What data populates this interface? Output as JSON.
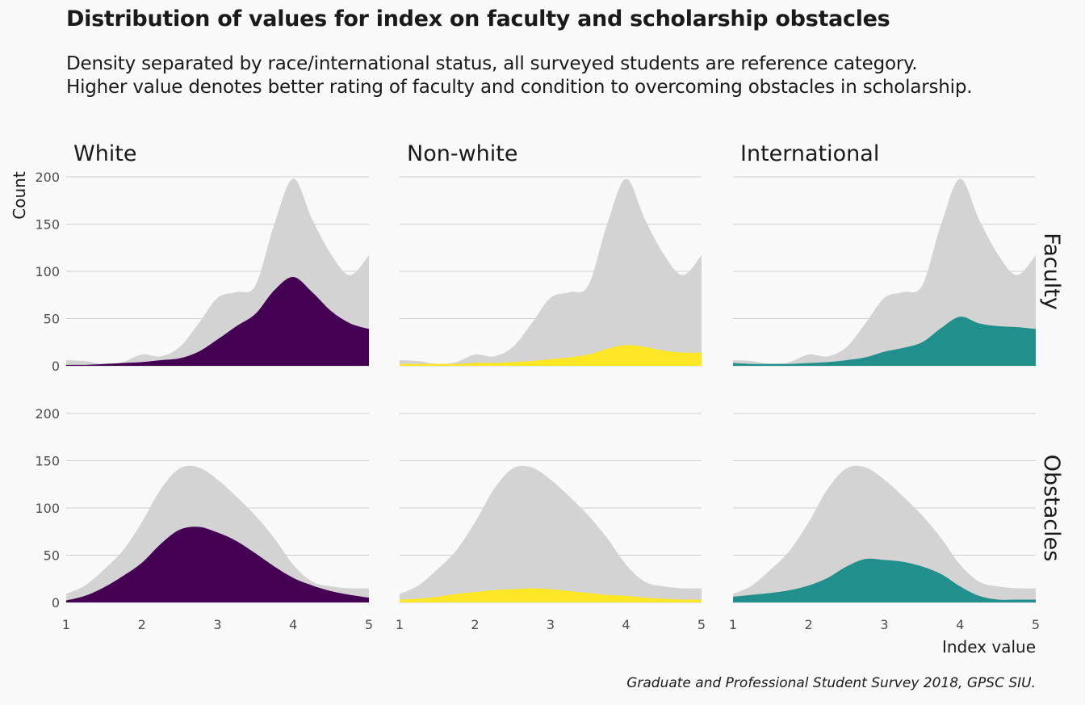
{
  "title": "Distribution of values for index on faculty and scholarship obstacles",
  "subtitle": [
    "Density separated by race/international status, all surveyed students are reference category.",
    "Higher value denotes better rating of faculty and condition to overcoming obstacles in scholarship."
  ],
  "caption": "Graduate and Professional Student Survey 2018, GPSC SIU.",
  "chart_data": {
    "type": "area",
    "columns": [
      "White",
      "Non-white",
      "International"
    ],
    "rows": [
      "Faculty",
      "Obstacles"
    ],
    "xlabel": "Index value",
    "ylabel": "Count",
    "xlim": [
      1,
      5
    ],
    "ylim": [
      0,
      200
    ],
    "xticks": [
      1,
      2,
      3,
      4,
      5
    ],
    "yticks": [
      0,
      50,
      100,
      150,
      200
    ],
    "grid": true,
    "colors": {
      "reference": "#d3d3d3",
      "White": "#440154",
      "Non-white": "#fde725",
      "International": "#21908c"
    },
    "x": [
      1.0,
      1.25,
      1.5,
      1.75,
      2.0,
      2.25,
      2.5,
      2.75,
      3.0,
      3.25,
      3.5,
      3.75,
      4.0,
      4.25,
      4.5,
      4.75,
      5.0
    ],
    "panels": {
      "Faculty": {
        "reference": [
          6,
          5,
          2,
          4,
          12,
          10,
          20,
          45,
          72,
          78,
          85,
          150,
          198,
          155,
          118,
          96,
          117
        ],
        "White": [
          1,
          1,
          2,
          3,
          4,
          6,
          8,
          15,
          28,
          42,
          55,
          80,
          94,
          78,
          58,
          45,
          39
        ],
        "Non-white": [
          2,
          2,
          2,
          2,
          3,
          3,
          4,
          5,
          7,
          9,
          12,
          18,
          22,
          20,
          16,
          14,
          14
        ],
        "International": [
          3,
          2,
          2,
          2,
          3,
          4,
          6,
          9,
          15,
          19,
          25,
          40,
          52,
          45,
          42,
          41,
          39
        ]
      },
      "Obstacles": {
        "reference": [
          9,
          18,
          35,
          55,
          85,
          120,
          142,
          143,
          130,
          112,
          92,
          68,
          40,
          22,
          17,
          15,
          15
        ],
        "White": [
          2,
          7,
          16,
          28,
          42,
          62,
          77,
          80,
          74,
          65,
          52,
          38,
          26,
          18,
          12,
          8,
          5
        ],
        "Non-white": [
          3,
          4,
          6,
          9,
          11,
          13,
          14,
          15,
          14,
          12,
          10,
          8,
          7,
          5,
          4,
          3,
          3
        ],
        "International": [
          6,
          8,
          10,
          13,
          18,
          26,
          38,
          46,
          45,
          43,
          38,
          30,
          17,
          7,
          3,
          3,
          3
        ]
      }
    }
  }
}
